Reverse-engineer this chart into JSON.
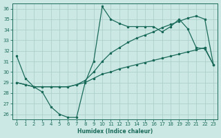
{
  "xlabel": "Humidex (Indice chaleur)",
  "bg_color": "#cce8e5",
  "line_color": "#1a6b5a",
  "grid_color": "#aed0cc",
  "xlim": [
    -0.5,
    23.5
  ],
  "ylim": [
    25.5,
    36.5
  ],
  "xticks": [
    0,
    1,
    2,
    3,
    4,
    5,
    6,
    7,
    8,
    9,
    10,
    11,
    12,
    13,
    14,
    15,
    16,
    17,
    18,
    19,
    20,
    21,
    22,
    23
  ],
  "yticks": [
    26,
    27,
    28,
    29,
    30,
    31,
    32,
    33,
    34,
    35,
    36
  ],
  "line1_y": [
    31.5,
    29.4,
    28.6,
    28.1,
    26.7,
    26.0,
    25.7,
    25.7,
    29.0,
    31.0,
    36.2,
    35.0,
    34.6,
    34.3,
    34.3,
    34.3,
    34.3,
    33.8,
    34.3,
    35.0,
    34.1,
    32.3,
    32.2,
    30.7
  ],
  "line2_y": [
    29.0,
    28.8,
    28.6,
    28.6,
    28.6,
    28.6,
    28.6,
    28.8,
    29.2,
    30.0,
    31.0,
    31.8,
    32.3,
    32.8,
    33.2,
    33.5,
    33.8,
    34.2,
    34.5,
    34.8,
    35.1,
    35.3,
    35.0,
    30.7
  ],
  "line3_y": [
    29.0,
    28.8,
    28.6,
    28.6,
    28.6,
    28.6,
    28.6,
    28.8,
    29.0,
    29.4,
    29.8,
    30.0,
    30.3,
    30.5,
    30.7,
    30.9,
    31.1,
    31.3,
    31.5,
    31.7,
    31.9,
    32.1,
    32.3,
    30.7
  ]
}
